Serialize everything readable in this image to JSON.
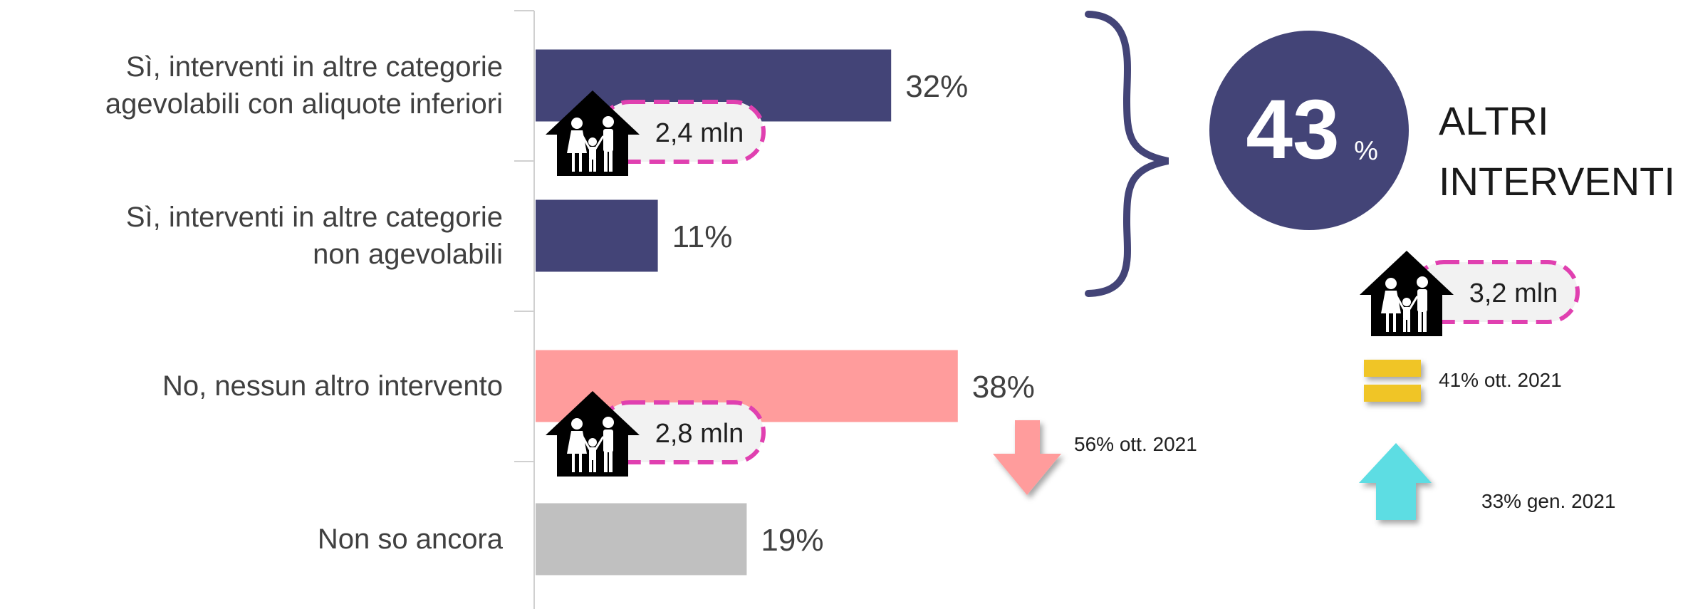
{
  "chart_data": {
    "type": "bar",
    "orientation": "horizontal",
    "categories": [
      "Sì, interventi in altre categorie\nagevolabili con aliquote inferiori",
      "Sì, interventi in altre categorie\nnon agevolabili",
      "No, nessun altro intervento",
      "Non so ancora"
    ],
    "values": [
      32,
      11,
      38,
      19
    ],
    "value_labels": [
      "32%",
      "11%",
      "38%",
      "19%"
    ],
    "bar_colors": [
      "#434477",
      "#434477",
      "#ff9c9c",
      "#c0c0c0"
    ],
    "xlim": [
      0,
      50
    ],
    "grid": false,
    "households": [
      {
        "category_index": 0,
        "label": "2,4 mln"
      },
      {
        "category_index": 2,
        "label": "2,8 mln"
      }
    ]
  },
  "summary": {
    "value": "43",
    "unit": "%",
    "title_line1": "ALTRI",
    "title_line2": "INTERVENTI",
    "households_label": "3,2 mln",
    "circle_color": "#434477",
    "brace_color": "#434477"
  },
  "comparisons": {
    "no_intervention": {
      "label": "56% ott. 2021",
      "direction": "down",
      "color": "#ff9c9c"
    },
    "summary_equal": {
      "label": "41% ott. 2021",
      "direction": "equal",
      "color": "#f0c525"
    },
    "summary_up": {
      "label": "33% gen. 2021",
      "direction": "up",
      "color": "#5ddde3"
    }
  },
  "badge_colors": {
    "house": "#000000",
    "pill_fill": "#f2f2f2",
    "pill_dash": "#e040b0"
  }
}
